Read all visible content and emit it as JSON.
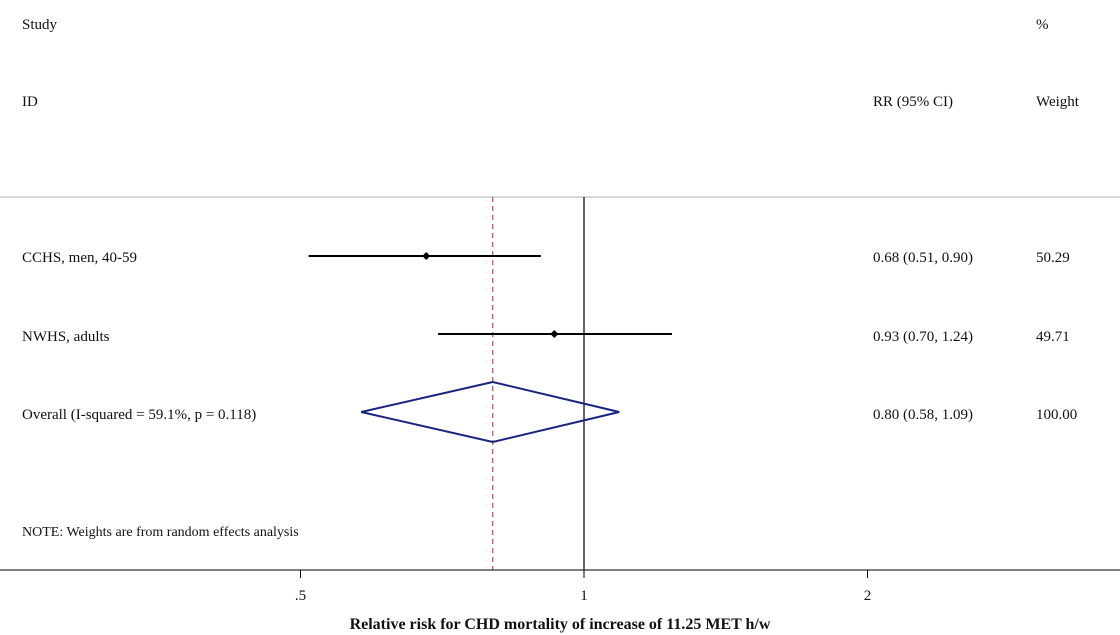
{
  "chart_data": {
    "type": "forest",
    "scale": "log",
    "header": {
      "study_line1": "Study",
      "study_line2": "ID",
      "rr": "RR (95% CI)",
      "weight_line1": "%",
      "weight_line2": "Weight"
    },
    "studies": [
      {
        "label": "CCHS, men, 40-59",
        "rr": 0.68,
        "lo": 0.51,
        "hi": 0.9,
        "ci_text": "0.68 (0.51, 0.90)",
        "weight": "50.29"
      },
      {
        "label": "NWHS, adults",
        "rr": 0.93,
        "lo": 0.7,
        "hi": 1.24,
        "ci_text": "0.93 (0.70, 1.24)",
        "weight": "49.71"
      }
    ],
    "overall": {
      "label": "Overall  (I-squared = 59.1%, p = 0.118)",
      "rr": 0.8,
      "lo": 0.58,
      "hi": 1.09,
      "ci_text": "0.80 (0.58, 1.09)",
      "weight": "100.00"
    },
    "note": "NOTE: Weights are from random effects analysis",
    "x_ticks": [
      {
        "value": 0.5,
        "label": ".5"
      },
      {
        "value": 1,
        "label": "1"
      },
      {
        "value": 2,
        "label": "2"
      }
    ],
    "xlabel": "Relative risk for CHD mortality of increase of 11.25 MET h/w",
    "null_line": 1,
    "colors": {
      "marker": "#000000",
      "diamond": "#1a237e",
      "overall_line": "#c0504d"
    }
  }
}
